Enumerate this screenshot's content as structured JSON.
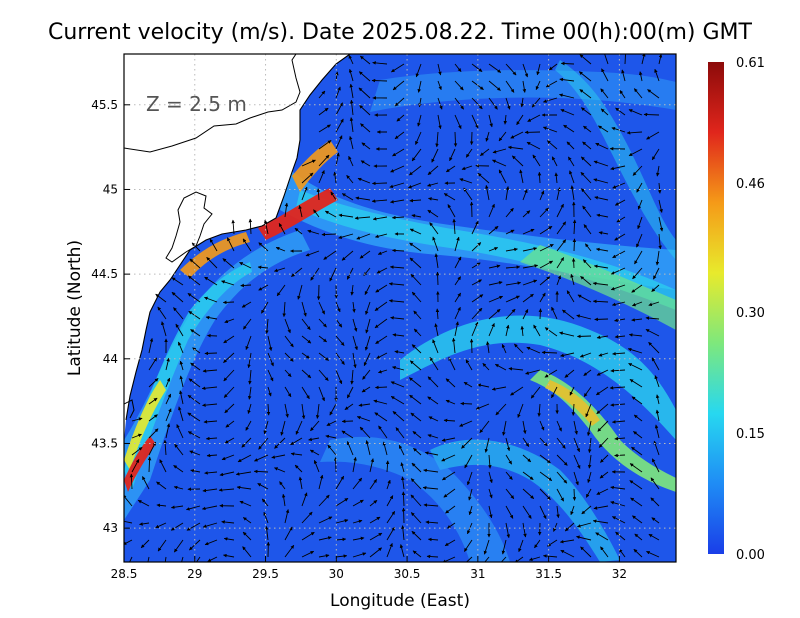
{
  "title": "Current velocity (m/s). Date 2025.08.22. Time 00(h):00(m) GMT",
  "depth_label": "Z = 2.5 m",
  "x_axis": {
    "label": "Longitude (East)",
    "range": [
      28.5,
      32.4
    ],
    "ticks": [
      {
        "value": 28.5,
        "label": "28.5"
      },
      {
        "value": 29,
        "label": "29"
      },
      {
        "value": 29.5,
        "label": "29.5"
      },
      {
        "value": 30,
        "label": "30"
      },
      {
        "value": 30.5,
        "label": "30.5"
      },
      {
        "value": 31,
        "label": "31"
      },
      {
        "value": 31.5,
        "label": "31.5"
      },
      {
        "value": 32,
        "label": "32"
      }
    ]
  },
  "y_axis": {
    "label": "Latitude (North)",
    "range": [
      42.8,
      45.8
    ],
    "ticks": [
      {
        "value": 43,
        "label": "43"
      },
      {
        "value": 43.5,
        "label": "43.5"
      },
      {
        "value": 44,
        "label": "44"
      },
      {
        "value": 44.5,
        "label": "44.5"
      },
      {
        "value": 45,
        "label": "45"
      },
      {
        "value": 45.5,
        "label": "45.5"
      }
    ]
  },
  "colorbar": {
    "ticks": [
      {
        "value": 0.0,
        "label": "0.00"
      },
      {
        "value": 0.15,
        "label": "0.15"
      },
      {
        "value": 0.3,
        "label": "0.30"
      },
      {
        "value": 0.46,
        "label": "0.46"
      },
      {
        "value": 0.61,
        "label": "0.61"
      }
    ],
    "range": [
      0.0,
      0.61
    ],
    "colors": [
      "#1a3ee8",
      "#1f8cf5",
      "#27d8f0",
      "#7ee87c",
      "#e8ea2c",
      "#f59a18",
      "#e0261c",
      "#8c0a0a"
    ]
  },
  "style": {
    "land_color": "#ffffff",
    "coast_color": "#000000",
    "grid": "dotted",
    "vector_color": "#000000"
  }
}
